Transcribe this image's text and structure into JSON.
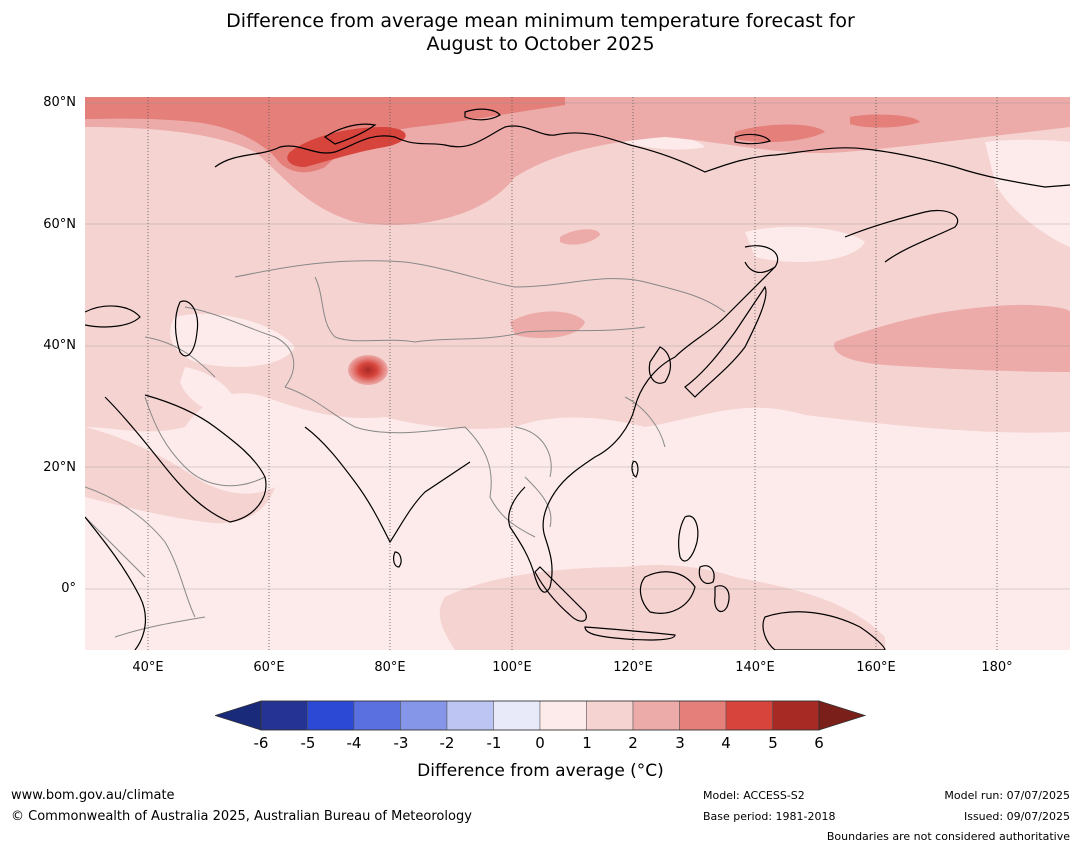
{
  "title": {
    "line1": "Difference from average mean minimum temperature forecast for",
    "line2": "August to October 2025"
  },
  "map": {
    "lat_labels": [
      "80°N",
      "60°N",
      "40°N",
      "20°N",
      "0°"
    ],
    "lon_labels": [
      "40°E",
      "60°E",
      "80°E",
      "100°E",
      "120°E",
      "140°E",
      "160°E",
      "180°"
    ],
    "extent": {
      "lon_min": 30,
      "lon_max": 191,
      "lat_min": -10,
      "lat_max": 81
    }
  },
  "colorbar": {
    "ticks": [
      "-6",
      "-5",
      "-4",
      "-3",
      "-2",
      "-1",
      "0",
      "1",
      "2",
      "3",
      "4",
      "5",
      "6"
    ],
    "colors": [
      "#253494",
      "#2c49d5",
      "#5b70e0",
      "#8595e8",
      "#bdc6f2",
      "#e8eaf9",
      "#fcebea",
      "#f5d3d1",
      "#ecaaa8",
      "#e47f7a",
      "#d6443c",
      "#a82a24"
    ],
    "under_color": "#1a2a7a",
    "over_color": "#7a1f1a",
    "label": "Difference from average (°C)"
  },
  "footer": {
    "website": "www.bom.gov.au/climate",
    "copyright": "© Commonwealth of Australia 2025, Australian Bureau of Meteorology",
    "model": "Model: ACCESS-S2",
    "base_period": "Base period: 1981-2018",
    "model_run": "Model run: 07/07/2025",
    "issued": "Issued: 09/07/2025",
    "disclaimer": "Boundaries are not considered authoritative"
  }
}
